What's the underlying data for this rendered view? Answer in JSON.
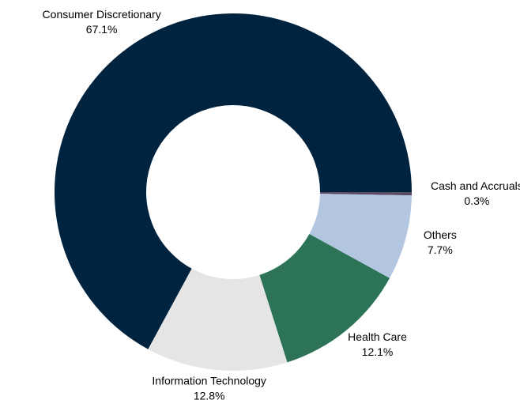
{
  "chart_data": {
    "type": "donut",
    "categories": [
      "Cash and Accruals",
      "Others",
      "Health Care",
      "Information Technology",
      "Consumer Discretionary"
    ],
    "values": [
      0.3,
      7.7,
      12.1,
      12.8,
      67.1
    ],
    "value_labels": [
      "0.3%",
      "7.7%",
      "12.1%",
      "12.8%",
      "67.1%"
    ],
    "colors": [
      "#5a4a63",
      "#b3c6e0",
      "#2d7358",
      "#e5e5e5",
      "#00233f"
    ]
  }
}
